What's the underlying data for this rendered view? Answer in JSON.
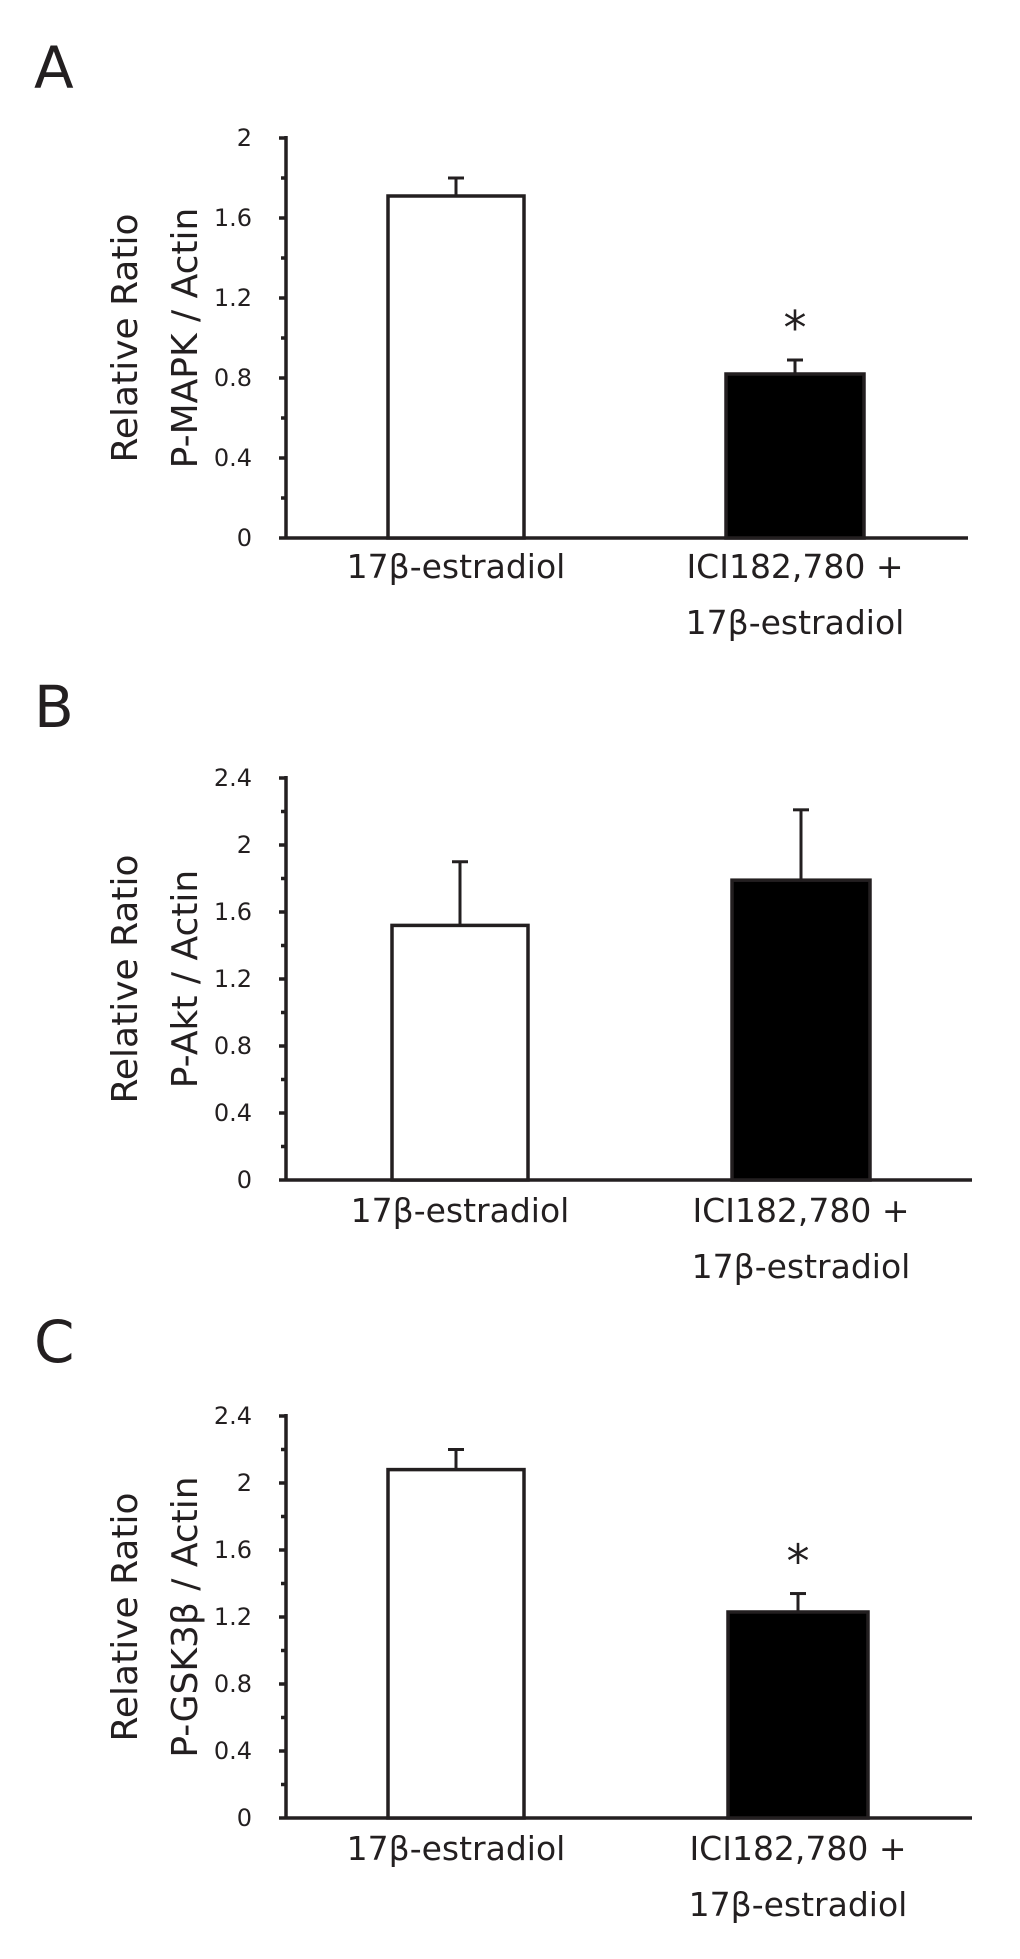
{
  "chart_data": [
    {
      "type": "bar",
      "panel_label": "A",
      "ylabel": [
        "Relative Ratio",
        "P-MAPK / Actin"
      ],
      "categories": [
        [
          "17β-estradiol"
        ],
        [
          "ICI182,780 +",
          "17β-estradiol"
        ]
      ],
      "values": [
        1.71,
        0.82
      ],
      "errors": [
        0.09,
        0.07
      ],
      "bar_colors": [
        "#ffffff",
        "#000000"
      ],
      "significance": [
        "",
        "*"
      ],
      "ylim": [
        0,
        2
      ],
      "yticks": [
        0,
        0.4,
        0.8,
        1.2,
        1.6,
        2
      ],
      "ytick_labels": [
        "0",
        "0.4",
        "0.8",
        "1.2",
        "1.6",
        "2"
      ]
    },
    {
      "type": "bar",
      "panel_label": "B",
      "ylabel": [
        "Relative Ratio",
        "P-Akt / Actin"
      ],
      "categories": [
        [
          "17β-estradiol"
        ],
        [
          "ICI182,780 +",
          "17β-estradiol"
        ]
      ],
      "values": [
        1.52,
        1.79
      ],
      "errors": [
        0.38,
        0.42
      ],
      "bar_colors": [
        "#ffffff",
        "#000000"
      ],
      "significance": [
        "",
        ""
      ],
      "ylim": [
        0,
        2.4
      ],
      "yticks": [
        0,
        0.4,
        0.8,
        1.2,
        1.6,
        2,
        2.4
      ],
      "ytick_labels": [
        "0",
        "0.4",
        "0.8",
        "1.2",
        "1.6",
        "2",
        "2.4"
      ]
    },
    {
      "type": "bar",
      "panel_label": "C",
      "ylabel": [
        "Relative Ratio",
        "P-GSK3β / Actin"
      ],
      "categories": [
        [
          "17β-estradiol"
        ],
        [
          "ICI182,780 +",
          "17β-estradiol"
        ]
      ],
      "values": [
        2.08,
        1.23
      ],
      "errors": [
        0.12,
        0.11
      ],
      "bar_colors": [
        "#ffffff",
        "#000000"
      ],
      "significance": [
        "",
        "*"
      ],
      "ylim": [
        0,
        2.4
      ],
      "yticks": [
        0,
        0.4,
        0.8,
        1.2,
        1.6,
        2,
        2.4
      ],
      "ytick_labels": [
        "0",
        "0.4",
        "0.8",
        "1.2",
        "1.6",
        "2",
        "2.4"
      ]
    }
  ]
}
